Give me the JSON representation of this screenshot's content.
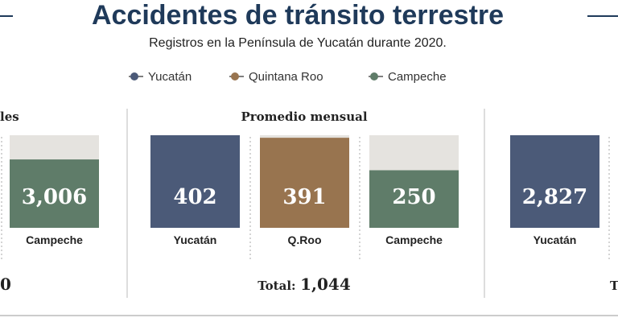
{
  "header": {
    "title": "Accidentes de tránsito terrestre",
    "subtitle": "Registros en la Península de Yucatán durante 2020."
  },
  "legend": [
    {
      "name": "Yucatán",
      "color": "#4b5a78"
    },
    {
      "name": "Quintana Roo",
      "color": "#98744f"
    },
    {
      "name": "Campeche",
      "color": "#5f7c69"
    }
  ],
  "chart_data": [
    {
      "type": "bar",
      "title": "les",
      "categories": [
        "Campeche"
      ],
      "values": [
        3006
      ],
      "value_labels": [
        "3,006"
      ],
      "colors": [
        "#5f7c69"
      ],
      "ylim": [
        0,
        4070
      ],
      "total": "0"
    },
    {
      "type": "bar",
      "title": "Promedio mensual",
      "categories": [
        "Yucatán",
        "Q.Roo",
        "Campeche"
      ],
      "values": [
        402,
        391,
        250
      ],
      "colors": [
        "#4b5a78",
        "#98744f",
        "#5f7c69"
      ],
      "ylim": [
        0,
        402
      ],
      "total_label": "Total:",
      "total": "1,044"
    },
    {
      "type": "bar",
      "categories": [
        "Yucatán"
      ],
      "values": [
        2827
      ],
      "value_labels": [
        "2,827"
      ],
      "colors": [
        "#4b5a78"
      ],
      "ylim": [
        0,
        2827
      ],
      "total_label": "T"
    }
  ]
}
